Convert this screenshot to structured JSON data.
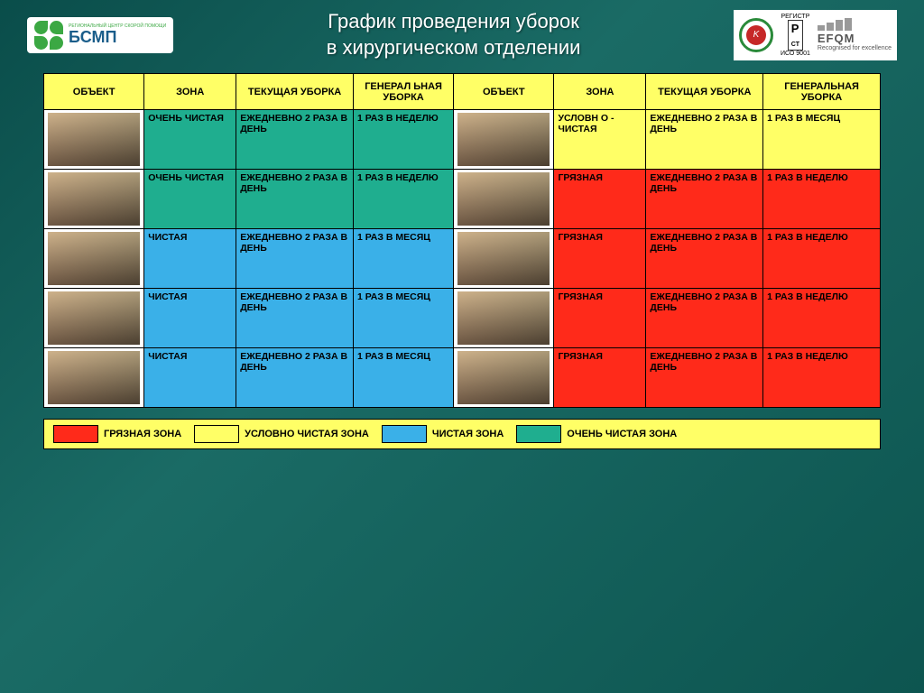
{
  "title_l1": "График проведения уборок",
  "title_l2": "в хирургическом отделении",
  "logo": {
    "sub": "РЕГИОНАЛЬНЫЙ ЦЕНТР СКОРОЙ ПОМОЩИ",
    "main": "БСМП"
  },
  "right": {
    "pct_top": "РЕГИСТР",
    "pct": "P",
    "pct2": "CT",
    "pct_sub": "ИСО 9001",
    "efqm": "EFQM",
    "efqm_sub": "Recognised for excellence"
  },
  "headers": {
    "object": "ОБЪЕКТ",
    "zone": "ЗОНА",
    "current": "ТЕКУЩАЯ УБОРКА",
    "general": "ГЕНЕРАЛ ЬНАЯ УБОРКА",
    "general2": "ГЕНЕРАЛЬНАЯ УБОРКА"
  },
  "colors": {
    "yellow": "#ffff66",
    "teal": "#1fae8f",
    "blue": "#3ab0e8",
    "red": "#ff2a1a"
  },
  "rows": [
    {
      "l": {
        "zone": "ОЧЕНЬ ЧИСТАЯ",
        "cur": "ЕЖЕДНЕВНО 2 РАЗА В ДЕНЬ",
        "gen": "1 РАЗ В НЕДЕЛЮ",
        "cls": "c-teal"
      },
      "r": {
        "zone": "УСЛОВН О - ЧИСТАЯ",
        "cur": "ЕЖЕДНЕВНО 2 РАЗА В ДЕНЬ",
        "gen": "1 РАЗ В МЕСЯЦ",
        "cls": "c-yellow"
      }
    },
    {
      "l": {
        "zone": "ОЧЕНЬ ЧИСТАЯ",
        "cur": "ЕЖЕДНЕВНО 2 РАЗА В ДЕНЬ",
        "gen": "1 РАЗ В НЕДЕЛЮ",
        "cls": "c-teal"
      },
      "r": {
        "zone": "ГРЯЗНАЯ",
        "cur": "ЕЖЕДНЕВНО 2 РАЗА В ДЕНЬ",
        "gen": "1 РАЗ В НЕДЕЛЮ",
        "cls": "c-red"
      }
    },
    {
      "l": {
        "zone": "ЧИСТАЯ",
        "cur": "ЕЖЕДНЕВНО 2 РАЗА В ДЕНЬ",
        "gen": "1 РАЗ В МЕСЯЦ",
        "cls": "c-blue"
      },
      "r": {
        "zone": "ГРЯЗНАЯ",
        "cur": "ЕЖЕДНЕВНО 2 РАЗА В ДЕНЬ",
        "gen": "1 РАЗ В НЕДЕЛЮ",
        "cls": "c-red"
      }
    },
    {
      "l": {
        "zone": "ЧИСТАЯ",
        "cur": "ЕЖЕДНЕВНО 2 РАЗА В ДЕНЬ",
        "gen": "1 РАЗ В МЕСЯЦ",
        "cls": "c-blue"
      },
      "r": {
        "zone": "ГРЯЗНАЯ",
        "cur": "ЕЖЕДНЕВНО 2 РАЗА В ДЕНЬ",
        "gen": "1 РАЗ В НЕДЕЛЮ",
        "cls": "c-red"
      }
    },
    {
      "l": {
        "zone": "ЧИСТАЯ",
        "cur": "ЕЖЕДНЕВНО 2 РАЗА В ДЕНЬ",
        "gen": "1 РАЗ В МЕСЯЦ",
        "cls": "c-blue"
      },
      "r": {
        "zone": "ГРЯЗНАЯ",
        "cur": "ЕЖЕДНЕВНО 2 РАЗА В ДЕНЬ",
        "gen": "1 РАЗ В НЕДЕЛЮ",
        "cls": "c-red"
      }
    }
  ],
  "legend": [
    {
      "color": "#ff2a1a",
      "label": "ГРЯЗНАЯ ЗОНА"
    },
    {
      "color": "#ffff66",
      "label": "УСЛОВНО ЧИСТАЯ ЗОНА"
    },
    {
      "color": "#3ab0e8",
      "label": "ЧИСТАЯ ЗОНА"
    },
    {
      "color": "#1fae8f",
      "label": "ОЧЕНЬ ЧИСТАЯ ЗОНА"
    }
  ]
}
